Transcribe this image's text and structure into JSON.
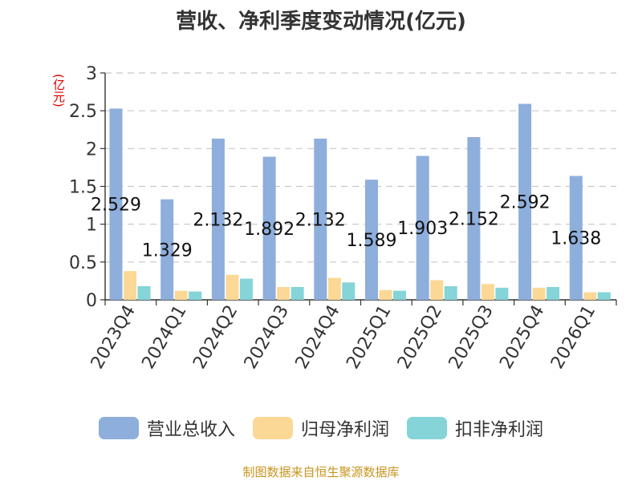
{
  "title": "营收、净利季度变动情况(亿元)",
  "unit_label": "(亿元)",
  "source": "制图数据来自恒生聚源数据库",
  "chart_data": {
    "type": "bar",
    "title": "营收、净利季度变动情况(亿元)",
    "ylabel": "(亿元)",
    "xlabel": "",
    "ylim": [
      0,
      3
    ],
    "yticks": [
      "0",
      "0.5",
      "1",
      "1.5",
      "2",
      "2.5",
      "3"
    ],
    "grid": true,
    "legend_position": "bottom",
    "categories": [
      "2023Q4",
      "2024Q1",
      "2024Q2",
      "2024Q3",
      "2024Q4",
      "2025Q1",
      "2025Q2",
      "2025Q3",
      "2025Q4",
      "2026Q1"
    ],
    "series": [
      {
        "name": "营业总收入",
        "color": "#8eaedc",
        "values": [
          2.529,
          1.329,
          2.132,
          1.892,
          2.132,
          1.589,
          1.903,
          2.152,
          2.592,
          1.638
        ],
        "labels": [
          "2.529",
          "1.329",
          "2.132",
          "1.892",
          "2.132",
          "1.589",
          "1.903",
          "2.152",
          "2.592",
          "1.638"
        ]
      },
      {
        "name": "归母净利润",
        "color": "#fcd896",
        "values": [
          0.38,
          0.12,
          0.33,
          0.17,
          0.29,
          0.13,
          0.26,
          0.21,
          0.16,
          0.1
        ]
      },
      {
        "name": "扣非净利润",
        "color": "#84d4d8",
        "values": [
          0.18,
          0.11,
          0.28,
          0.17,
          0.23,
          0.12,
          0.18,
          0.16,
          0.17,
          0.1
        ]
      }
    ]
  }
}
